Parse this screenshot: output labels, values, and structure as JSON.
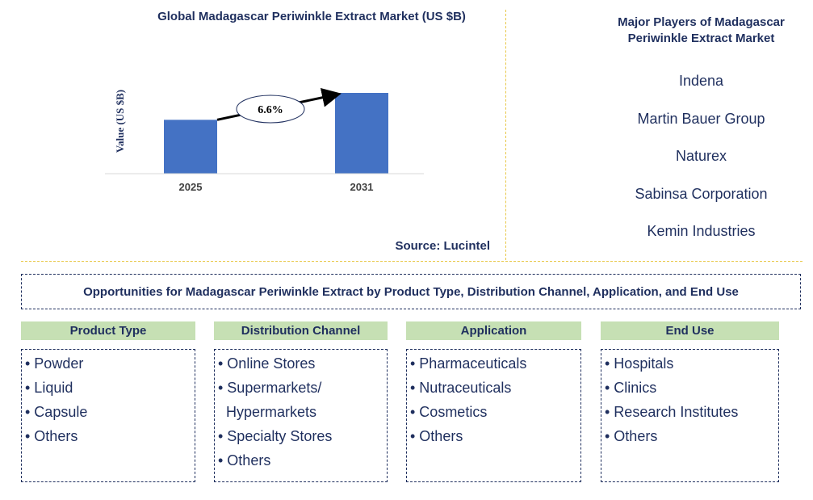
{
  "chart_data": {
    "type": "bar",
    "title": "Global Madagascar Periwinkle Extract Market (US $B)",
    "categories": [
      "2025",
      "2031"
    ],
    "values": [
      1.0,
      1.5
    ],
    "ylabel": "Value (US $B)",
    "xlabel": "",
    "ylim": [
      0,
      1.65
    ],
    "growth_label": "6.6%",
    "bar_color": "#4472c4",
    "grid": false
  },
  "source": "Source: Lucintel",
  "players": {
    "title": "Major Players of Madagascar Periwinkle Extract Market",
    "items": [
      "Indena",
      "Martin Bauer Group",
      "Naturex",
      "Sabinsa Corporation",
      "Kemin Industries"
    ]
  },
  "opportunities_title": "Opportunities for Madagascar Periwinkle Extract by Product Type, Distribution Channel, Application, and End Use",
  "segments": [
    {
      "header": "Product Type",
      "items": [
        "• Powder",
        "• Liquid",
        "• Capsule",
        "• Others"
      ]
    },
    {
      "header": "Distribution Channel",
      "items": [
        "• Online Stores",
        "• Supermarkets/",
        "Hypermarkets",
        "• Specialty Stores",
        "• Others"
      ]
    },
    {
      "header": "Application",
      "items": [
        "• Pharmaceuticals",
        "• Nutraceuticals",
        "• Cosmetics",
        "• Others"
      ]
    },
    {
      "header": "End Use",
      "items": [
        "• Hospitals",
        "• Clinics",
        "• Research Institutes",
        "• Others"
      ]
    }
  ],
  "colors": {
    "text": "#1f2f5e",
    "header_fill": "#c6e0b4",
    "divider": "#e8c84a"
  }
}
